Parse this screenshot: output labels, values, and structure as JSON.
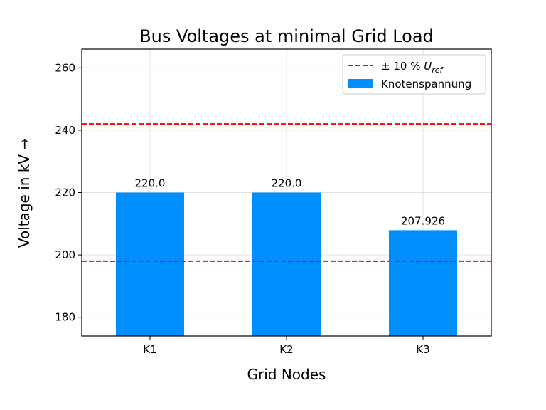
{
  "chart_data": {
    "type": "bar",
    "title": "Bus Voltages at minimal Grid Load",
    "xlabel": "Grid Nodes",
    "ylabel": "Voltage in kV →",
    "categories": [
      "K1",
      "K2",
      "K3"
    ],
    "series": [
      {
        "name": "Knotenspannung",
        "values": [
          220.0,
          220.0,
          207.926
        ],
        "color": "#008fff"
      }
    ],
    "data_labels": [
      "220.0",
      "220.0",
      "207.926"
    ],
    "reference_lines": {
      "name": "± 10 % U_ref",
      "legend_prefix": "± 10 % ",
      "legend_symbol": "U",
      "legend_subscript": "ref",
      "values": [
        198,
        242
      ],
      "color": "#ff0000",
      "style": "dashed"
    },
    "yticks": [
      180,
      200,
      220,
      240,
      260
    ],
    "ytick_labels": [
      "180",
      "200",
      "220",
      "240",
      "260"
    ],
    "ylim": [
      174,
      266
    ],
    "grid": true,
    "legend_position": "top-right"
  }
}
